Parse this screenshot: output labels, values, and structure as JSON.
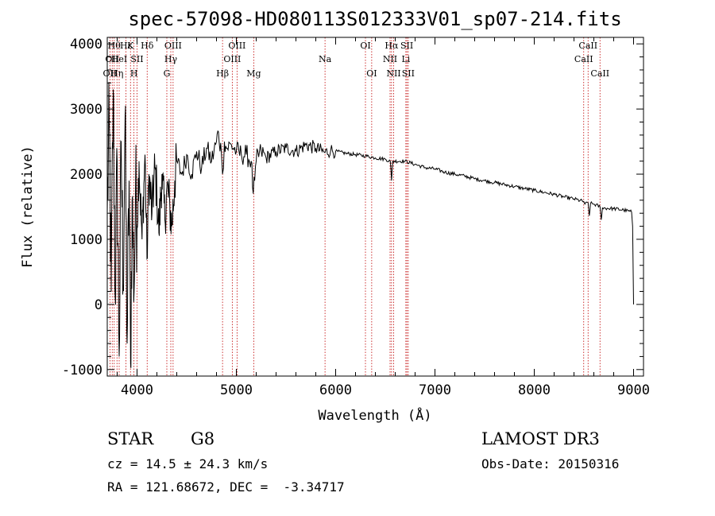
{
  "chart_data": {
    "type": "line",
    "title": "spec-57098-HD080113S012333V01_sp07-214.fits",
    "xlabel": "Wavelength (Å)",
    "ylabel": "Flux (relative)",
    "xlim": [
      3700,
      9100
    ],
    "ylim": [
      -1100,
      4100
    ],
    "xticks": [
      4000,
      5000,
      6000,
      7000,
      8000,
      9000
    ],
    "yticks": [
      -1000,
      0,
      1000,
      2000,
      3000,
      4000
    ],
    "series": [
      {
        "name": "flux",
        "anchors": [
          [
            3700,
            1400
          ],
          [
            3720,
            2800
          ],
          [
            3740,
            200
          ],
          [
            3760,
            3300
          ],
          [
            3780,
            100
          ],
          [
            3800,
            2200
          ],
          [
            3820,
            -800
          ],
          [
            3840,
            2500
          ],
          [
            3860,
            300
          ],
          [
            3880,
            2900
          ],
          [
            3900,
            -600
          ],
          [
            3920,
            1900
          ],
          [
            3935,
            -900
          ],
          [
            3950,
            1600
          ],
          [
            3970,
            200
          ],
          [
            3985,
            1800
          ],
          [
            4000,
            1200
          ],
          [
            4020,
            2200
          ],
          [
            4050,
            1000
          ],
          [
            4080,
            2300
          ],
          [
            4100,
            700
          ],
          [
            4120,
            2000
          ],
          [
            4150,
            1400
          ],
          [
            4180,
            2100
          ],
          [
            4200,
            1700
          ],
          [
            4220,
            1100
          ],
          [
            4250,
            2000
          ],
          [
            4280,
            1300
          ],
          [
            4300,
            1800
          ],
          [
            4330,
            1500
          ],
          [
            4350,
            1200
          ],
          [
            4380,
            1900
          ],
          [
            4400,
            2200
          ],
          [
            4450,
            2000
          ],
          [
            4500,
            2300
          ],
          [
            4550,
            2000
          ],
          [
            4600,
            2350
          ],
          [
            4650,
            2100
          ],
          [
            4700,
            2400
          ],
          [
            4750,
            2200
          ],
          [
            4800,
            2500
          ],
          [
            4820,
            2650
          ],
          [
            4850,
            2300
          ],
          [
            4861,
            2000
          ],
          [
            4880,
            2500
          ],
          [
            4900,
            2400
          ],
          [
            4950,
            2450
          ],
          [
            5000,
            2350
          ],
          [
            5050,
            2300
          ],
          [
            5100,
            2300
          ],
          [
            5150,
            2200
          ],
          [
            5170,
            1700
          ],
          [
            5185,
            1900
          ],
          [
            5200,
            2200
          ],
          [
            5250,
            2350
          ],
          [
            5300,
            2250
          ],
          [
            5400,
            2350
          ],
          [
            5500,
            2400
          ],
          [
            5600,
            2350
          ],
          [
            5700,
            2450
          ],
          [
            5800,
            2400
          ],
          [
            5893,
            2330
          ],
          [
            5950,
            2370
          ],
          [
            6000,
            2350
          ],
          [
            6100,
            2320
          ],
          [
            6200,
            2300
          ],
          [
            6300,
            2280
          ],
          [
            6400,
            2250
          ],
          [
            6500,
            2230
          ],
          [
            6550,
            2200
          ],
          [
            6563,
            1900
          ],
          [
            6575,
            2200
          ],
          [
            6700,
            2200
          ],
          [
            6800,
            2150
          ],
          [
            6900,
            2100
          ],
          [
            7000,
            2080
          ],
          [
            7100,
            2030
          ],
          [
            7200,
            2000
          ],
          [
            7300,
            1970
          ],
          [
            7400,
            1930
          ],
          [
            7500,
            1900
          ],
          [
            7600,
            1870
          ],
          [
            7700,
            1840
          ],
          [
            7800,
            1810
          ],
          [
            7900,
            1780
          ],
          [
            8000,
            1750
          ],
          [
            8100,
            1720
          ],
          [
            8200,
            1690
          ],
          [
            8300,
            1650
          ],
          [
            8400,
            1620
          ],
          [
            8498,
            1580
          ],
          [
            8510,
            1540
          ],
          [
            8542,
            1560
          ],
          [
            8554,
            1360
          ],
          [
            8566,
            1550
          ],
          [
            8600,
            1540
          ],
          [
            8662,
            1500
          ],
          [
            8674,
            1300
          ],
          [
            8686,
            1480
          ],
          [
            8800,
            1470
          ],
          [
            8900,
            1450
          ],
          [
            8980,
            1420
          ],
          [
            8990,
            1200
          ],
          [
            9000,
            0
          ]
        ]
      }
    ],
    "spectral_lines": [
      {
        "wavelength": 3727,
        "label": "OII",
        "row": 2
      },
      {
        "wavelength": 3750,
        "label": "OII",
        "row": 1
      },
      {
        "wavelength": 3770,
        "label": "Hθ",
        "row": 0
      },
      {
        "wavelength": 3798,
        "label": "Hη",
        "row": 2
      },
      {
        "wavelength": 3820,
        "label": "HeI",
        "row": 1
      },
      {
        "wavelength": 3889,
        "label": "Hε",
        "row": 0
      },
      {
        "wavelength": 3934,
        "label": "K",
        "row": 0
      },
      {
        "wavelength": 3969,
        "label": "H",
        "row": 2
      },
      {
        "wavelength": 4000,
        "label": "SII",
        "row": 1
      },
      {
        "wavelength": 4102,
        "label": "Hδ",
        "row": 0
      },
      {
        "wavelength": 4300,
        "label": "G",
        "row": 2
      },
      {
        "wavelength": 4340,
        "label": "Hγ",
        "row": 1
      },
      {
        "wavelength": 4363,
        "label": "OIII",
        "row": 0
      },
      {
        "wavelength": 4861,
        "label": "Hβ",
        "row": 2
      },
      {
        "wavelength": 4959,
        "label": "OIII",
        "row": 1
      },
      {
        "wavelength": 5007,
        "label": "OIII",
        "row": 0
      },
      {
        "wavelength": 5175,
        "label": "Mg",
        "row": 2
      },
      {
        "wavelength": 5893,
        "label": "Na",
        "row": 1
      },
      {
        "wavelength": 6300,
        "label": "OI",
        "row": 0
      },
      {
        "wavelength": 6363,
        "label": "OI",
        "row": 2
      },
      {
        "wavelength": 6548,
        "label": "NII",
        "row": 1
      },
      {
        "wavelength": 6563,
        "label": "Hα",
        "row": 0
      },
      {
        "wavelength": 6584,
        "label": "NII",
        "row": 2
      },
      {
        "wavelength": 6707,
        "label": "Li",
        "row": 1
      },
      {
        "wavelength": 6717,
        "label": "SII",
        "row": 0
      },
      {
        "wavelength": 6731,
        "label": "SII",
        "row": 2
      },
      {
        "wavelength": 8498,
        "label": "CaII",
        "row": 1
      },
      {
        "wavelength": 8542,
        "label": "CaII",
        "row": 0
      },
      {
        "wavelength": 8662,
        "label": "CaII",
        "row": 2
      }
    ]
  },
  "info": {
    "object_class": "STAR",
    "subclass": "G8",
    "survey": "LAMOST DR3",
    "redshift": "cz = 14.5 ± 24.3 km/s",
    "obs_date": "Obs-Date: 20150316",
    "coords": "RA = 121.68672, DEC =  -3.34717"
  },
  "colors": {
    "line_marker": "#c00000",
    "spectrum": "#000000"
  }
}
